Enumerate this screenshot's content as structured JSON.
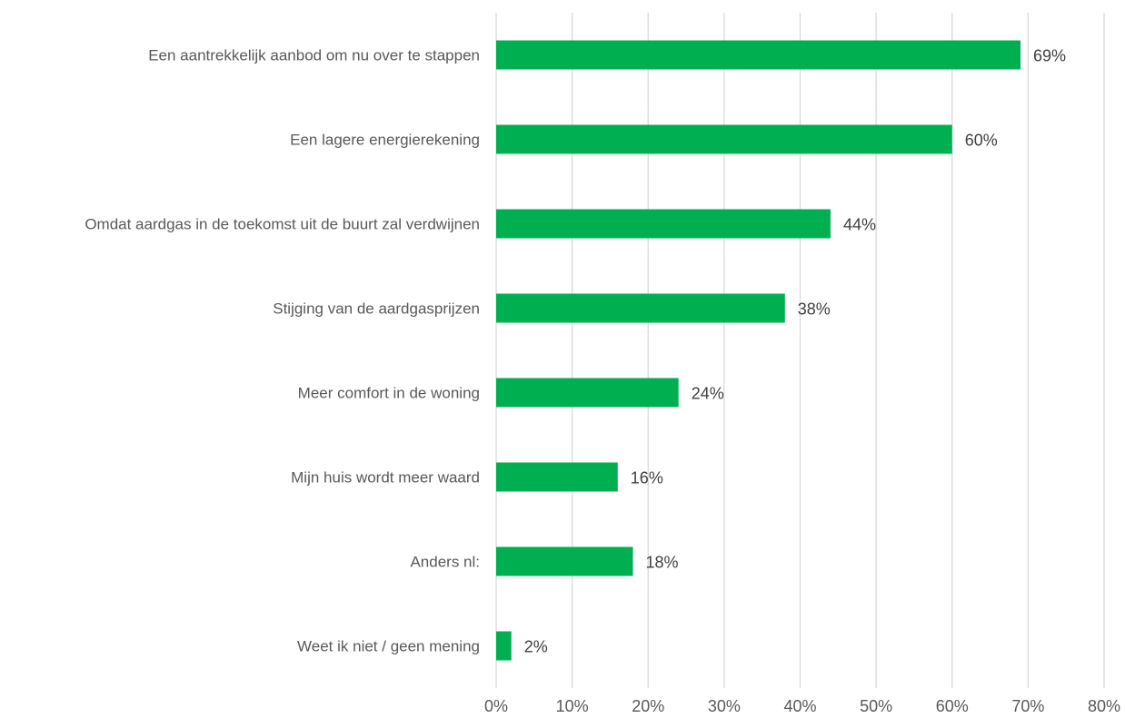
{
  "chart_data": {
    "type": "bar",
    "orientation": "horizontal",
    "title": "",
    "xlabel": "",
    "ylabel": "",
    "xlim": [
      0,
      80
    ],
    "x_ticks": [
      "0%",
      "10%",
      "20%",
      "30%",
      "40%",
      "50%",
      "60%",
      "70%",
      "80%"
    ],
    "grid": "vertical",
    "legend": "none",
    "categories": [
      "Een aantrekkelijk aanbod om nu over te stappen",
      "Een lagere energierekening",
      "Omdat aardgas in de toekomst uit de buurt zal verdwijnen",
      "Stijging van de aardgasprijzen",
      "Meer comfort in de woning",
      "Mijn huis wordt meer waard",
      "Anders nl:",
      "Weet ik niet / geen mening"
    ],
    "values": [
      69,
      60,
      44,
      38,
      24,
      16,
      18,
      2
    ],
    "value_labels": [
      "69%",
      "60%",
      "44%",
      "38%",
      "24%",
      "16%",
      "18%",
      "2%"
    ],
    "colors": {
      "bar": "#00b050",
      "grid": "#d9d9d9",
      "text": "#595959"
    }
  }
}
